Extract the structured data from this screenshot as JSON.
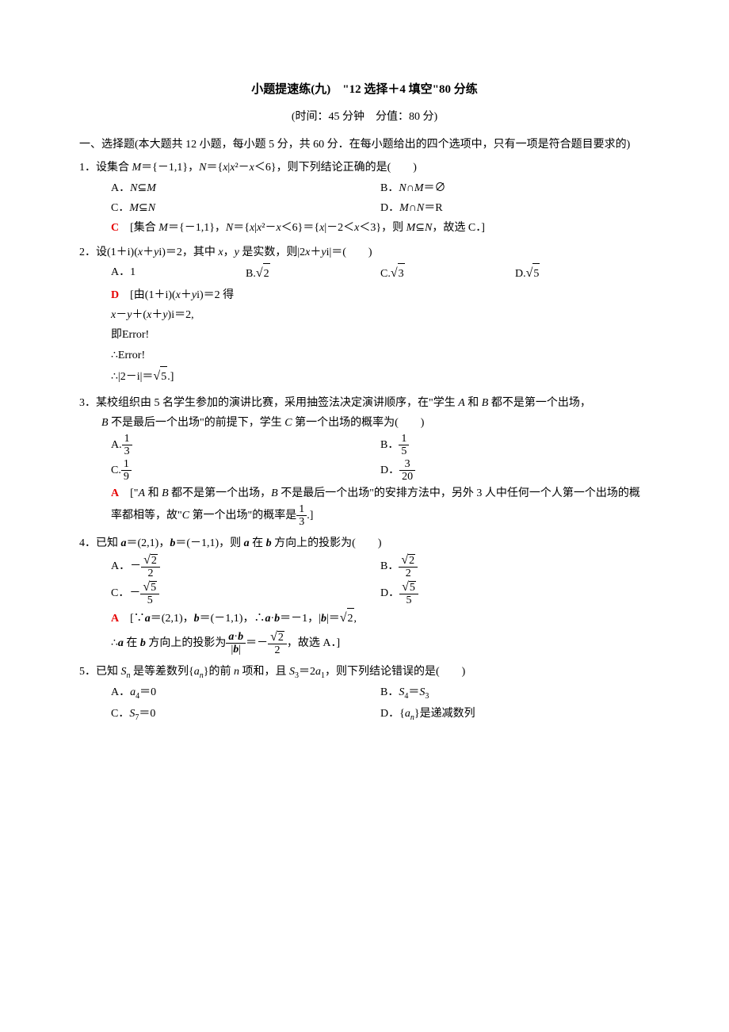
{
  "title": "小题提速练(九)　\"12 选择＋4 填空\"80 分练",
  "subtitle": "(时间：45 分钟　分值：80 分)",
  "section1_header": "一、选择题(本大题共 12 小题，每小题 5 分，共 60 分．在每小题给出的四个选项中，只有一项是符合题目要求的)",
  "q1": {
    "num": "1．",
    "stem_prefix": "设集合 ",
    "stem_mid1": "＝{－1,1}，",
    "stem_mid2": "＝{",
    "stem_mid3": "|",
    "stem_mid4": "－",
    "stem_mid5": "＜6}，则下列结论正确的是(　　)",
    "optA": "A．",
    "optA_rel": "⊆",
    "optB": "B．",
    "optB_mid": "∩",
    "optB_end": "＝∅",
    "optC": "C．",
    "optC_rel": "⊆",
    "optD": "D．",
    "optD_mid": "∩",
    "optD_end": "＝R",
    "ans": "C",
    "exp_prefix": "　[集合 ",
    "exp_mid1": "＝{－1,1}，",
    "exp_mid2": "＝{",
    "exp_mid3": "|",
    "exp_mid4": "－",
    "exp_mid5": "＜6}＝{",
    "exp_mid6": "|－2＜",
    "exp_mid7": "＜3}，则 ",
    "exp_rel": "⊆",
    "exp_end": "，故选 C．]"
  },
  "q2": {
    "num": "2．",
    "stem_prefix": "设(1＋i)(",
    "stem_mid1": "＋",
    "stem_mid2": "i)＝2，其中 ",
    "stem_mid3": "，",
    "stem_mid4": " 是实数，则|2",
    "stem_mid5": "＋",
    "stem_mid6": "i|＝(　　)",
    "optA": "A．1",
    "optB": "B.",
    "optBval": "2",
    "optC": "C.",
    "optCval": "3",
    "optD": "D.",
    "optDval": "5",
    "ans": "D",
    "exp1_prefix": "　[由(1＋i)(",
    "exp1_mid1": "＋",
    "exp1_mid2": "i)＝2 得",
    "exp2_prefix": "",
    "exp2_mid1": "－",
    "exp2_mid2": "＋(",
    "exp2_mid3": "＋",
    "exp2_mid4": ")i＝2,",
    "exp3": "即Error!",
    "exp4": "∴Error!",
    "exp5_prefix": "∴|2－i|＝",
    "exp5_val": "5",
    "exp5_end": ".]"
  },
  "q3": {
    "num": "3．",
    "stem1": "某校组织由 5 名学生参加的演讲比赛，采用抽签法决定演讲顺序，在\"学生 ",
    "stem2": " 和 ",
    "stem3": " 都不是第一个出场，",
    "stem4": " 不是最后一个出场\"的前提下，学生 ",
    "stem5": " 第一个出场的概率为(　　)",
    "optA": "A.",
    "optA_num": "1",
    "optA_den": "3",
    "optB": "B．",
    "optB_num": "1",
    "optB_den": "5",
    "optC": "C.",
    "optC_num": "1",
    "optC_den": "9",
    "optD": "D．",
    "optD_num": "3",
    "optD_den": "20",
    "ans": "A",
    "exp1": "　[\"",
    "exp2": " 和 ",
    "exp3": " 都不是第一个出场，",
    "exp4": " 不是最后一个出场\"的安排方法中，另外 3 人中任何一个人第一个出场的概率都相等，故\"",
    "exp5": " 第一个出场\"的概率是",
    "exp_num": "1",
    "exp_den": "3",
    "exp_end": ".]"
  },
  "q4": {
    "num": "4．",
    "stem1": "已知 ",
    "stem2": "＝(2,1)，",
    "stem3": "＝(－1,1)，则 ",
    "stem4": " 在 ",
    "stem5": " 方向上的投影为(　　)",
    "optA": "A．－",
    "optA_num": "2",
    "optA_den": "2",
    "optB": "B．",
    "optB_num": "2",
    "optB_den": "2",
    "optC": "C．－",
    "optC_num": "5",
    "optC_den": "5",
    "optD": "D．",
    "optD_num": "5",
    "optD_den": "5",
    "ans": "A",
    "exp1": "　[∵",
    "exp2": "＝(2,1)，",
    "exp3": "＝(－1,1)，∴",
    "exp4": "·",
    "exp5": "＝－1，|",
    "exp6": "|＝",
    "exp6_val": "2",
    "exp6_end": ",",
    "exp7": "∴",
    "exp8": " 在 ",
    "exp9": " 方向上的投影为",
    "exp10_end": "＝－",
    "exp10_num": "2",
    "exp10_den": "2",
    "exp_final": "，故选 A．]"
  },
  "q5": {
    "num": "5．",
    "stem1": "已知 ",
    "stem2": " 是等差数列{",
    "stem3": "}的前 ",
    "stem4": " 项和，且 ",
    "stem5": "＝2",
    "stem6": "，则下列结论错误的是(　　)",
    "optA": "A．",
    "optA_end": "＝0",
    "optB": "B．",
    "optB_end": "＝",
    "optC": "C．",
    "optC_end": "＝0",
    "optD": "D．{",
    "optD_end": "}是递减数列"
  }
}
